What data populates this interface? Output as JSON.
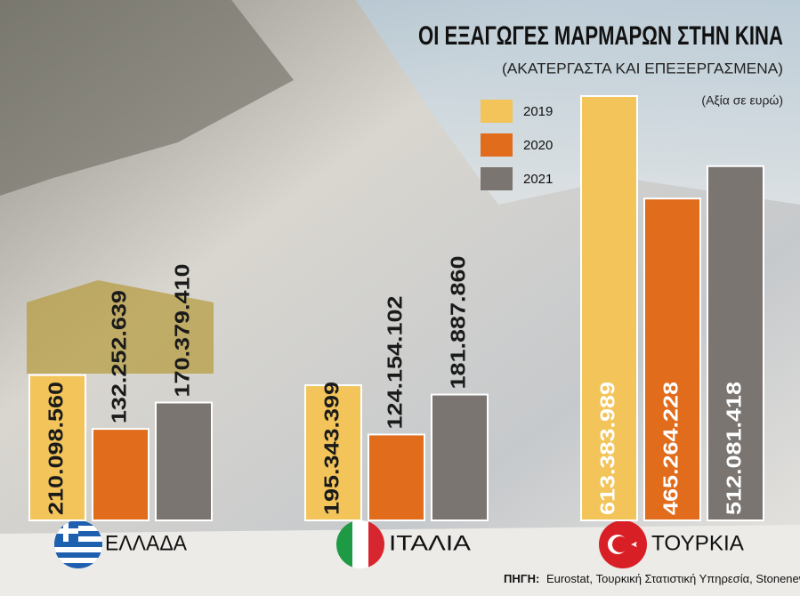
{
  "chart_data": {
    "type": "bar",
    "title": "ΟΙ ΕΞΑΓΩΓΕΣ ΜΑΡΜΑΡΩΝ ΣΤΗΝ ΚΙΝΑ",
    "subtitle": "(ΑΚΑΤΕΡΓΑΣΤΑ ΚΑΙ ΕΠΕΞΕΡΓΑΣΜΕΝΑ)",
    "unit_note": "(Αξία σε ευρώ)",
    "categories": [
      "ΕΛΛΑΔΑ",
      "ΙΤΑΛΙΑ",
      "ΤΟΥΡΚΙΑ"
    ],
    "series": [
      {
        "name": "2019",
        "color": "#f2c45a",
        "values": [
          210098560,
          195343399,
          613383989
        ],
        "value_labels": [
          "210.098.560",
          "195.343.399",
          "613.383.989"
        ]
      },
      {
        "name": "2020",
        "color": "#e06c1c",
        "values": [
          132252639,
          124154102,
          465264228
        ],
        "value_labels": [
          "132.252.639",
          "124.154.102",
          "465.264.228"
        ]
      },
      {
        "name": "2021",
        "color": "#7b7571",
        "values": [
          170379410,
          181887860,
          512081418
        ],
        "value_labels": [
          "170.379.410",
          "181.887.860",
          "512.081.418"
        ]
      }
    ],
    "source_label": "ΠΗΓΗ:",
    "source": "Eurostat, Τουρκική Στατιστική Υπηρεσία, Stonenews.eu"
  }
}
